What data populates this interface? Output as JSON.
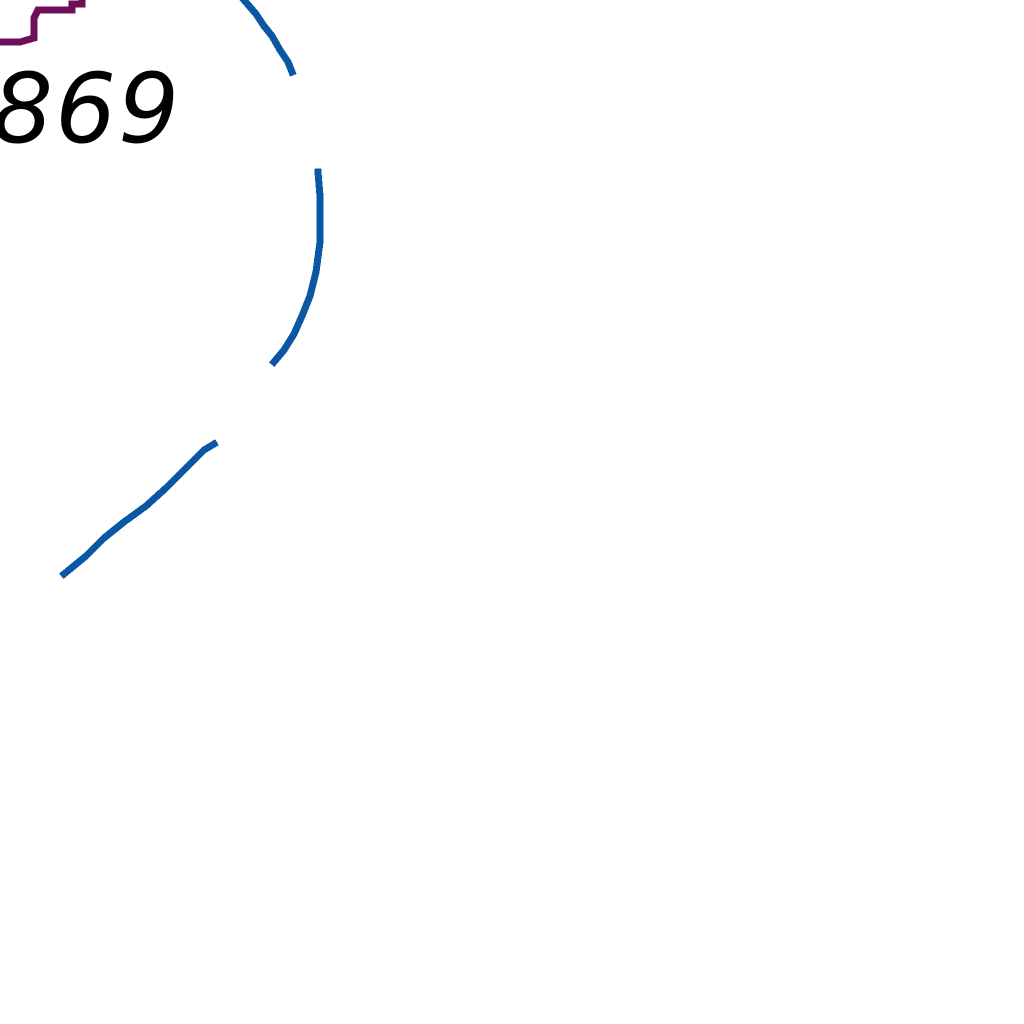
{
  "map": {
    "route_label": "869",
    "colors": {
      "background": "#ffffff",
      "blue_line": "#0b57a4",
      "purple_line": "#6f0f5a",
      "label_text": "#000000"
    },
    "features": [
      "blue-arc-line",
      "purple-stepped-line",
      "route-number-label"
    ]
  }
}
